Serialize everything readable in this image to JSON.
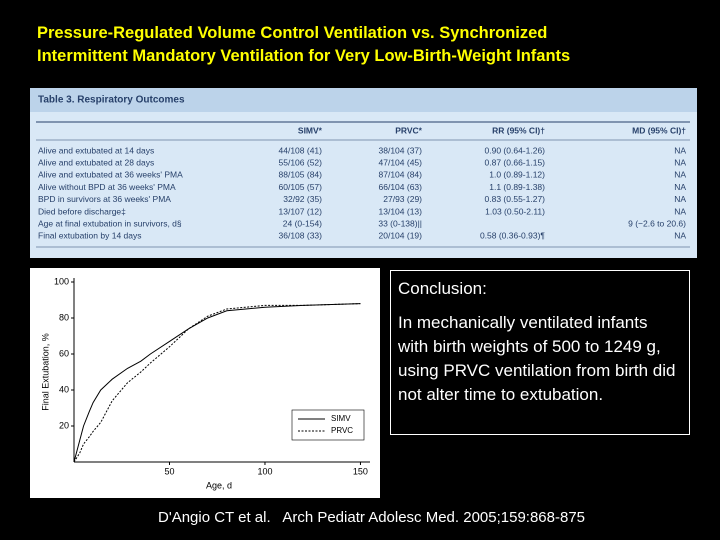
{
  "header": {
    "title_lines": [
      "Pressure-Regulated Volume Control Ventilation vs. Synchronized",
      "Intermittent Mandatory Ventilation for Very Low-Birth-Weight Infants"
    ]
  },
  "table": {
    "title": "Table 3. Respiratory Outcomes",
    "columns": [
      null,
      "SIMV*",
      "PRVC*",
      "RR (95% CI)†",
      "MD (95% CI)†"
    ],
    "rows": [
      [
        "Alive and extubated at 14 days",
        "44/108 (41)",
        "38/104 (37)",
        "0.90 (0.64-1.26)",
        "NA"
      ],
      [
        "Alive and extubated at 28 days",
        "55/106 (52)",
        "47/104 (45)",
        "0.87 (0.66-1.15)",
        "NA"
      ],
      [
        "Alive and extubated at 36 weeks' PMA",
        "88/105 (84)",
        "87/104 (84)",
        "1.0 (0.89-1.12)",
        "NA"
      ],
      [
        "Alive without BPD at 36 weeks' PMA",
        "60/105 (57)",
        "66/104 (63)",
        "1.1 (0.89-1.38)",
        "NA"
      ],
      [
        "BPD in survivors at 36 weeks' PMA",
        "32/92 (35)",
        "27/93 (29)",
        "0.83 (0.55-1.27)",
        "NA"
      ],
      [
        "Died before discharge‡",
        "13/107 (12)",
        "13/104 (13)",
        "1.03 (0.50-2.11)",
        "NA"
      ],
      [
        "Age at final extubation in survivors, d§",
        "24 (0-154)",
        "33 (0-138)||",
        null,
        "9 (−2.6 to 20.6)"
      ],
      [
        "Final extubation by 14 days",
        "36/108 (33)",
        "20/104 (19)",
        "0.58 (0.36-0.93)¶",
        "NA"
      ]
    ]
  },
  "figure": {
    "type": "line",
    "x_label": "Age, d",
    "y_label": "Final Extubation, %",
    "xlim": [
      0,
      155
    ],
    "ylim": [
      0,
      100
    ],
    "xticks": [
      50,
      100,
      150
    ],
    "yticks": [
      20,
      40,
      60,
      80,
      100
    ],
    "x": [
      0,
      3,
      5,
      8,
      10,
      14,
      20,
      28,
      35,
      40,
      50,
      60,
      70,
      80,
      90,
      100,
      120,
      150
    ],
    "series": [
      {
        "name": "SIMV",
        "style": "solid",
        "values": [
          0,
          12,
          20,
          28,
          33,
          40,
          46,
          52,
          56,
          60,
          67,
          74,
          80,
          84,
          85,
          86,
          87,
          88
        ]
      },
      {
        "name": "PRVC",
        "style": "dashed",
        "values": [
          0,
          5,
          10,
          14,
          17,
          22,
          34,
          44,
          50,
          55,
          64,
          74,
          81,
          85,
          86,
          87,
          87,
          88
        ]
      }
    ]
  },
  "conclusion": {
    "heading": "Conclusion:",
    "text": "In mechanically ventilated infants with birth weights of 500 to 1249 g, using PRVC ventilation from birth did not alter time to extubation."
  },
  "citation": "D'Angio CT et al.   Arch Pediatr Adolesc Med. 2005;159:868-875"
}
